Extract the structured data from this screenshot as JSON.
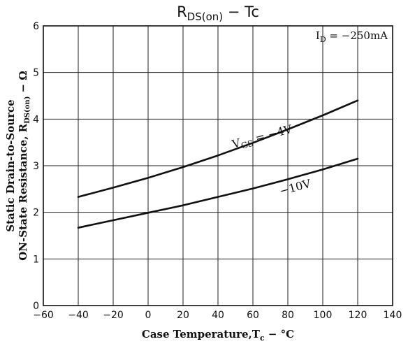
{
  "chart_data": {
    "type": "line",
    "title": {
      "main": "R",
      "sub": "DS(on)",
      "suffix": " − Tc"
    },
    "xlabel": {
      "main": "Case Temperature,T",
      "sub": "c",
      "suffix": " − °C"
    },
    "ylabel": {
      "line1": "Static Drain-to-Source",
      "line2_main": "ON-State Resistance, R",
      "line2_sub": "DS(on)",
      "line2_suffix": " − Ω"
    },
    "xlim": [
      -60,
      140
    ],
    "ylim": [
      0,
      6
    ],
    "xticks": [
      -60,
      -40,
      -20,
      0,
      20,
      40,
      60,
      80,
      100,
      120,
      140
    ],
    "yticks": [
      0,
      1,
      2,
      3,
      4,
      5,
      6
    ],
    "grid": true,
    "annotation": {
      "main": "I",
      "sub": "D",
      "suffix": " = −250mA"
    },
    "series": [
      {
        "label_main": "V",
        "label_sub": "GS",
        "label_suffix": " = −4V",
        "x": [
          -40,
          -20,
          0,
          20,
          40,
          60,
          80,
          100,
          120
        ],
        "y": [
          2.33,
          2.53,
          2.74,
          2.97,
          3.22,
          3.49,
          3.78,
          4.08,
          4.4
        ]
      },
      {
        "label_main": "",
        "label_sub": "",
        "label_suffix": "−10V",
        "x": [
          -40,
          -20,
          0,
          20,
          40,
          60,
          80,
          100,
          120
        ],
        "y": [
          1.67,
          1.83,
          1.99,
          2.15,
          2.33,
          2.51,
          2.71,
          2.92,
          3.15
        ]
      }
    ]
  }
}
